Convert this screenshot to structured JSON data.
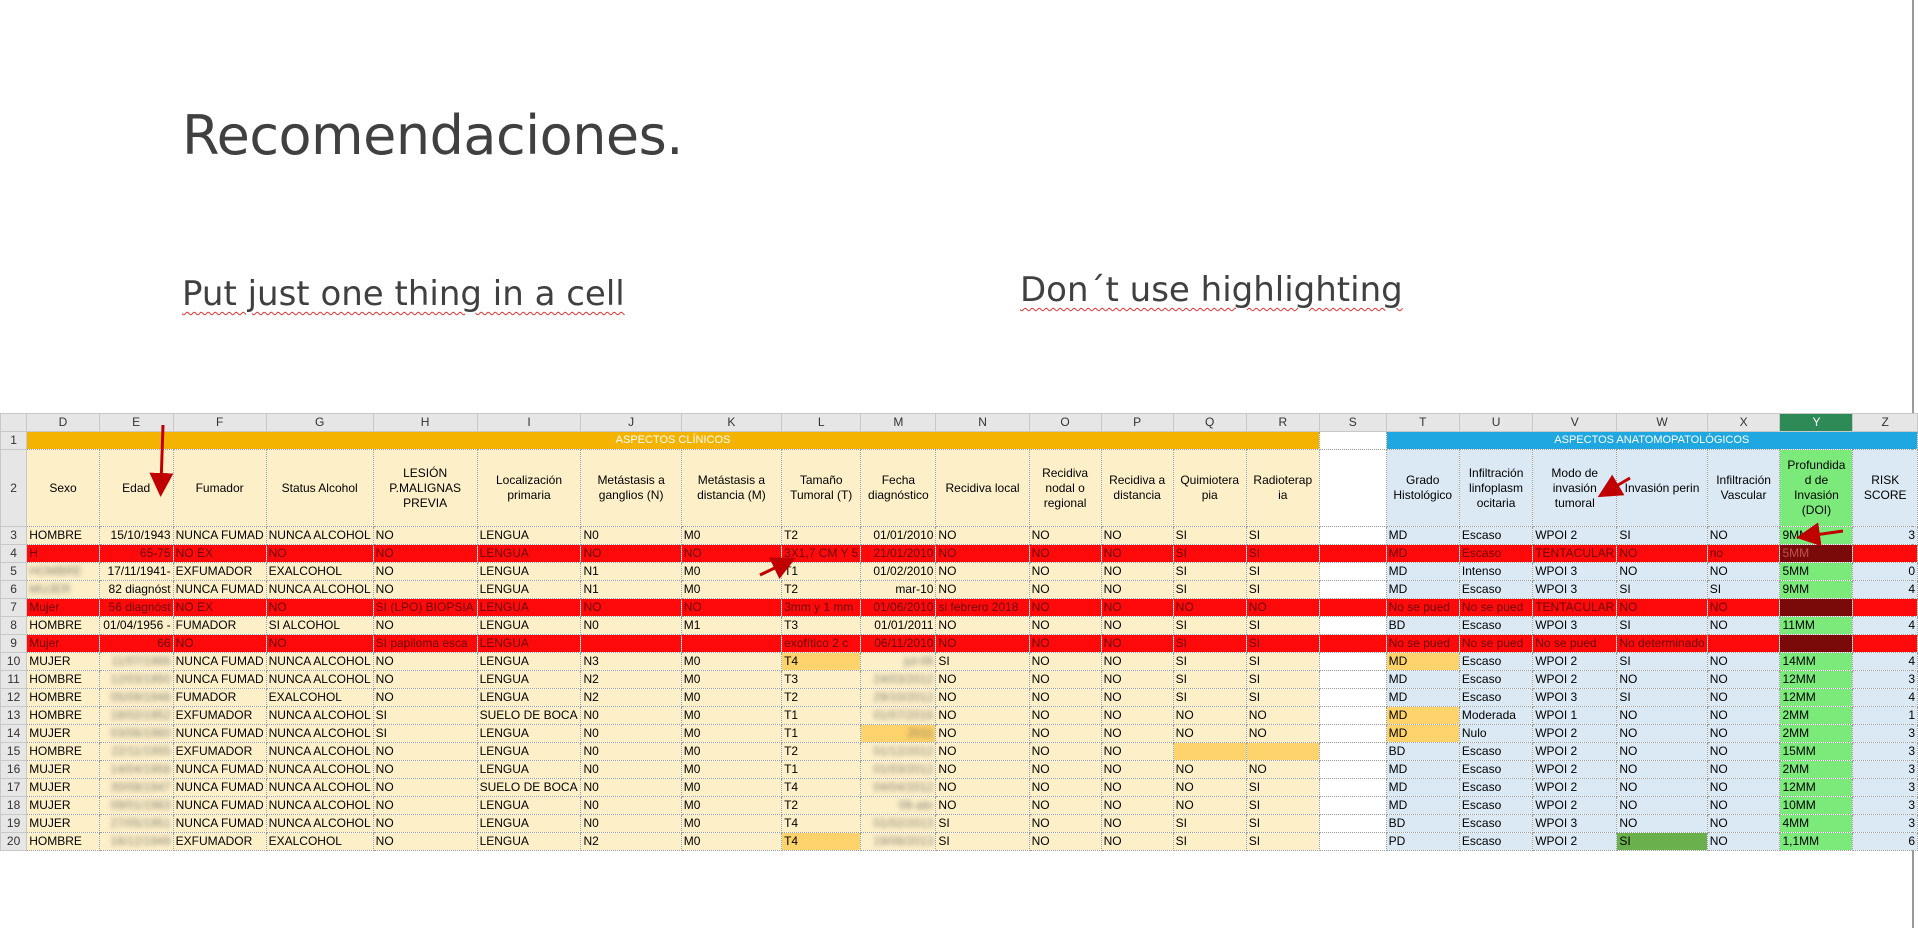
{
  "slide": {
    "title": "Recomendaciones.",
    "tip_left": "Put just one thing in a cell",
    "tip_right": "Don´t use highlighting"
  },
  "sheet": {
    "columns": [
      "D",
      "E",
      "F",
      "G",
      "H",
      "I",
      "J",
      "K",
      "L",
      "M",
      "N",
      "O",
      "P",
      "Q",
      "R",
      "S",
      "T",
      "U",
      "V",
      "W",
      "X",
      "Y",
      "Z"
    ],
    "group_clinical": "ASPECTOS CLÍNICOS",
    "group_anatomo": "ASPECTOS ANATOMOPATOLÓGICOS",
    "headers": [
      "Sexo",
      "Edad",
      "Fumador",
      "Status Alcohol",
      "LESIÓN P.MALIGNAS PREVIA",
      "Localización primaria",
      "Metástasis a ganglios (N)",
      "Metástasis a distancia (M)",
      "Tamaño Tumoral (T)",
      "Fecha diagnóstico",
      "Recidiva local",
      "Recidiva nodal o regional",
      "Recidiva a distancia",
      "Quimiotera pia",
      "Radioterap ia",
      "",
      "Grado Histológico",
      "Infiltración linfoplasm ocitaria",
      "Modo de invasión tumoral",
      "Invasión perin",
      "Infiltración Vascular",
      "Profundida d de Invasión (DOI)",
      "RISK SCORE"
    ],
    "rows": [
      {
        "n": "3",
        "hl": false,
        "cells": [
          "HOMBRE",
          "15/10/1943",
          "NUNCA FUMAD",
          "NUNCA ALCOHOL",
          "NO",
          "LENGUA",
          "N0",
          "M0",
          "T2",
          "01/01/2010",
          "NO",
          "NO",
          "NO",
          "SI",
          "SI",
          "",
          "MD",
          "Escaso",
          "WPOI 2",
          "SI",
          "NO",
          "9MM",
          "3"
        ]
      },
      {
        "n": "4",
        "hl": true,
        "cells": [
          "H",
          "65-75",
          "NO EX",
          "NO",
          "NO",
          "LENGUA",
          "NO",
          "NO",
          "3X1,7 CM Y 5",
          "21/01/2010",
          "NO",
          "NO",
          "NO",
          "SI",
          "SI",
          "",
          "MD",
          "Escaso",
          "TENTACULAR",
          "NO",
          "no",
          "5MM",
          ""
        ]
      },
      {
        "n": "5",
        "hl": false,
        "cells": [
          "HOMBRE",
          "17/11/1941-",
          "EXFUMADOR",
          "EXALCOHOL",
          "NO",
          "LENGUA",
          "N1",
          "M0",
          "T1",
          "01/02/2010",
          "NO",
          "NO",
          "NO",
          "SI",
          "SI",
          "",
          "MD",
          "Intenso",
          "WPOI 3",
          "NO",
          "NO",
          "5MM",
          "0"
        ]
      },
      {
        "n": "6",
        "hl": false,
        "cells": [
          "MUJER",
          "82 diagnóst",
          "NUNCA FUMAD",
          "NUNCA ALCOHOL",
          "NO",
          "LENGUA",
          "N1",
          "M0",
          "T2",
          "mar-10",
          "NO",
          "NO",
          "NO",
          "SI",
          "SI",
          "",
          "MD",
          "Escaso",
          "WPOI 3",
          "SI",
          "SI",
          "9MM",
          "4"
        ]
      },
      {
        "n": "7",
        "hl": true,
        "cells": [
          "Mujer",
          "56 diagnóst",
          "NO EX",
          "NO",
          "SI (LPO) BIOPSIA",
          "LENGUA",
          "NO",
          "NO",
          "3mm y 1 mm",
          "01/06/2010",
          "si febrero 2018",
          "NO",
          "NO",
          "NO",
          "NO",
          "",
          "No se pued",
          "No se pued",
          "TENTACULAR",
          "NO",
          "NO",
          "",
          ""
        ]
      },
      {
        "n": "8",
        "hl": false,
        "cells": [
          "HOMBRE",
          "01/04/1956 -",
          "FUMADOR",
          "SI ALCOHOL",
          "NO",
          "LENGUA",
          "N0",
          "M1",
          "T3",
          "01/01/2011",
          "NO",
          "NO",
          "NO",
          "SI",
          "SI",
          "",
          "BD",
          "Escaso",
          "WPOI 3",
          "SI",
          "NO",
          "11MM",
          "4"
        ]
      },
      {
        "n": "9",
        "hl": true,
        "cells": [
          "Mujer",
          "66",
          "NO",
          "NO",
          "SI papiloma esca",
          "LENGUA",
          "",
          "",
          "exofítico 2 c",
          "06/11/2010",
          "NO",
          "NO",
          "NO",
          "SI",
          "SI",
          "",
          "No se pued",
          "No se pued",
          "No se pued",
          "No determinado",
          "",
          "",
          ""
        ]
      },
      {
        "n": "10",
        "hl": false,
        "cells": [
          "MUJER",
          "11/07/1966",
          "NUNCA FUMAD",
          "NUNCA ALCOHOL",
          "NO",
          "LENGUA",
          "N3",
          "M0",
          "T4",
          "jul-06",
          "SI",
          "NO",
          "NO",
          "SI",
          "SI",
          "",
          "MD",
          "Escaso",
          "WPOI 2",
          "SI",
          "NO",
          "14MM",
          "4"
        ]
      },
      {
        "n": "11",
        "hl": false,
        "cells": [
          "HOMBRE",
          "12/03/1950",
          "NUNCA FUMAD",
          "NUNCA ALCOHOL",
          "NO",
          "LENGUA",
          "N2",
          "M0",
          "T3",
          "24/03/2012",
          "NO",
          "NO",
          "NO",
          "SI",
          "SI",
          "",
          "MD",
          "Escaso",
          "WPOI 2",
          "NO",
          "NO",
          "12MM",
          "3"
        ]
      },
      {
        "n": "12",
        "hl": false,
        "cells": [
          "HOMBRE",
          "05/09/1948",
          "FUMADOR",
          "EXALCOHOL",
          "NO",
          "LENGUA",
          "N2",
          "M0",
          "T2",
          "29/10/2012",
          "NO",
          "NO",
          "NO",
          "SI",
          "SI",
          "",
          "MD",
          "Escaso",
          "WPOI 3",
          "SI",
          "NO",
          "12MM",
          "4"
        ]
      },
      {
        "n": "13",
        "hl": false,
        "cells": [
          "HOMBRE",
          "18/02/1952",
          "EXFUMADOR",
          "NUNCA ALCOHOL",
          "SI",
          "SUELO DE BOCA",
          "N0",
          "M0",
          "T1",
          "01/07/2016",
          "NO",
          "NO",
          "NO",
          "NO",
          "NO",
          "",
          "MD",
          "Moderada",
          "WPOI 1",
          "NO",
          "NO",
          "2MM",
          "1"
        ]
      },
      {
        "n": "14",
        "hl": false,
        "cells": [
          "MUJER",
          "03/06/1960",
          "NUNCA FUMAD",
          "NUNCA ALCOHOL",
          "SI",
          "LENGUA",
          "N0",
          "M0",
          "T1",
          "2011",
          "NO",
          "NO",
          "NO",
          "NO",
          "NO",
          "",
          "MD",
          "Nulo",
          "WPOI 2",
          "NO",
          "NO",
          "2MM",
          "3"
        ]
      },
      {
        "n": "15",
        "hl": false,
        "cells": [
          "HOMBRE",
          "22/11/1955",
          "EXFUMADOR",
          "NUNCA ALCOHOL",
          "NO",
          "LENGUA",
          "N0",
          "M0",
          "T2",
          "01/12/2012",
          "NO",
          "NO",
          "NO",
          "",
          "",
          "",
          "BD",
          "Escaso",
          "WPOI 2",
          "NO",
          "NO",
          "15MM",
          "3"
        ]
      },
      {
        "n": "16",
        "hl": false,
        "cells": [
          "MUJER",
          "14/04/1958",
          "NUNCA FUMAD",
          "NUNCA ALCOHOL",
          "NO",
          "LENGUA",
          "N0",
          "M0",
          "T1",
          "01/03/2012",
          "NO",
          "NO",
          "NO",
          "NO",
          "NO",
          "",
          "MD",
          "Escaso",
          "WPOI 2",
          "NO",
          "NO",
          "2MM",
          "3"
        ]
      },
      {
        "n": "17",
        "hl": false,
        "cells": [
          "MUJER",
          "30/08/1947",
          "NUNCA FUMAD",
          "NUNCA ALCOHOL",
          "NO",
          "SUELO DE BOCA",
          "N0",
          "M0",
          "T4",
          "04/04/2012",
          "NO",
          "NO",
          "NO",
          "NO",
          "SI",
          "",
          "MD",
          "Escaso",
          "WPOI 2",
          "NO",
          "NO",
          "12MM",
          "3"
        ]
      },
      {
        "n": "18",
        "hl": false,
        "cells": [
          "MUJER",
          "09/01/1963",
          "NUNCA FUMAD",
          "NUNCA ALCOHOL",
          "NO",
          "LENGUA",
          "N0",
          "M0",
          "T2",
          "06-abr",
          "NO",
          "NO",
          "NO",
          "NO",
          "SI",
          "",
          "MD",
          "Escaso",
          "WPOI 2",
          "NO",
          "NO",
          "10MM",
          "3"
        ]
      },
      {
        "n": "19",
        "hl": false,
        "cells": [
          "MUJER",
          "27/05/1951",
          "NUNCA FUMAD",
          "NUNCA ALCOHOL",
          "NO",
          "LENGUA",
          "N0",
          "M0",
          "T4",
          "01/02/2013",
          "SI",
          "NO",
          "NO",
          "SI",
          "SI",
          "",
          "BD",
          "Escaso",
          "WPOI 3",
          "NO",
          "NO",
          "4MM",
          "3"
        ]
      },
      {
        "n": "20",
        "hl": false,
        "cells": [
          "HOMBRE",
          "16/12/1949",
          "EXFUMADOR",
          "EXALCOHOL",
          "NO",
          "LENGUA",
          "N2",
          "M0",
          "T4",
          "19/06/2013",
          "SI",
          "NO",
          "NO",
          "SI",
          "SI",
          "",
          "PD",
          "Escaso",
          "WPOI 2",
          "SI",
          "NO",
          "1,1MM",
          "6"
        ]
      }
    ]
  },
  "colors": {
    "clinical_header": "#f5b301",
    "anatomo_header": "#1ea7e1",
    "highlight_red": "#ff0a0a",
    "doi_green": "#7bea7b",
    "arrow": "#c00000"
  }
}
